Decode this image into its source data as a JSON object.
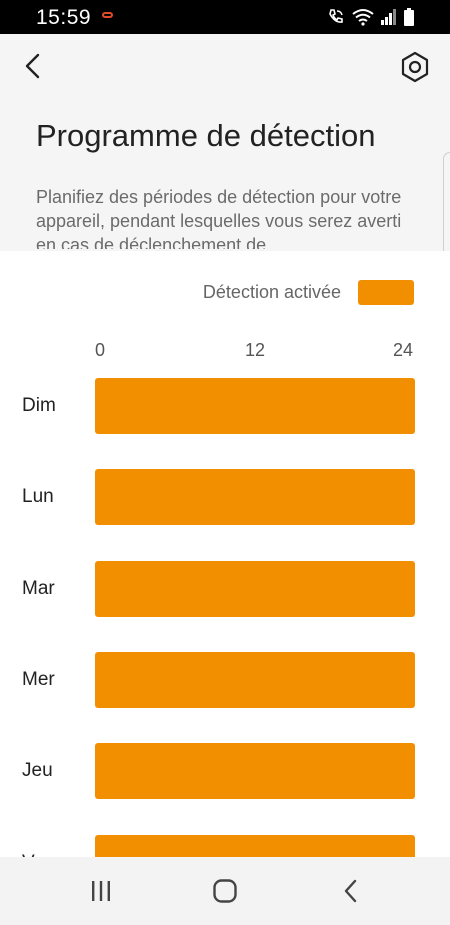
{
  "status_bar": {
    "time": "15:59",
    "icons": [
      "notification-icon",
      "wifi-calling-icon",
      "wifi-icon",
      "signal-icon",
      "battery-icon"
    ]
  },
  "header": {
    "back_icon": "back-chevron-icon",
    "settings_icon": "settings-hexagon-icon"
  },
  "page": {
    "title": "Programme de détection",
    "description": "Planifiez des périodes de détection pour votre appareil, pendant lesquelles vous serez averti en cas de déclenchement de"
  },
  "legend": {
    "label": "Détection activée",
    "color": "#f28f00"
  },
  "chart_data": {
    "type": "bar",
    "orientation": "horizontal-timeline",
    "x_ticks": [
      "0",
      "12",
      "24"
    ],
    "xlim": [
      0,
      24
    ],
    "categories": [
      "Dim",
      "Lun",
      "Mar",
      "Mer",
      "Jeu",
      "Ven"
    ],
    "series": [
      {
        "name": "Détection activée",
        "color": "#f28f00",
        "intervals": [
          [
            [
              0,
              24
            ]
          ],
          [
            [
              0,
              24
            ]
          ],
          [
            [
              0,
              24
            ]
          ],
          [
            [
              0,
              24
            ]
          ],
          [
            [
              0,
              24
            ]
          ],
          [
            [
              0,
              24
            ]
          ]
        ]
      }
    ]
  },
  "nav_bar": {
    "icons": [
      "recents-icon",
      "home-icon",
      "back-icon"
    ]
  }
}
